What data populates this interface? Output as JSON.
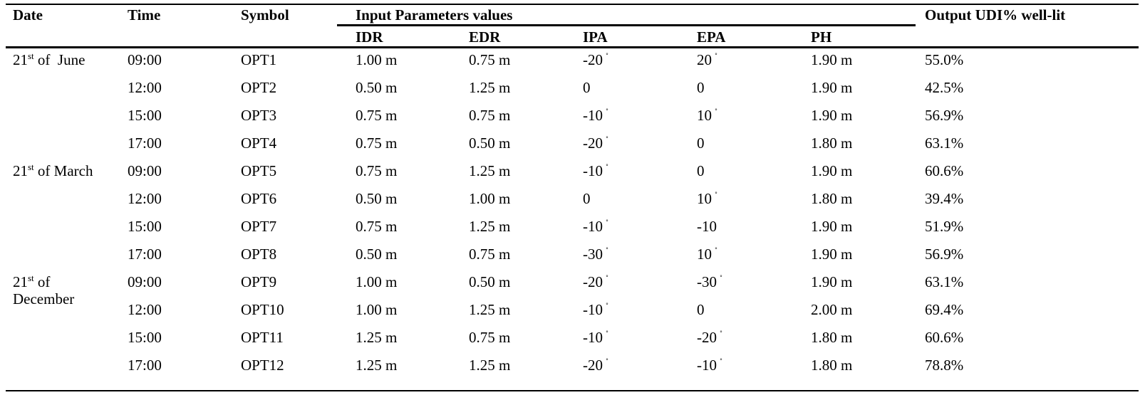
{
  "headers": {
    "date": "Date",
    "time": "Time",
    "symbol": "Symbol",
    "input_group": "Input Parameters values",
    "output": "Output UDI% well-lit",
    "idr": "IDR",
    "edr": "EDR",
    "ipa": "IPA",
    "epa": "EPA",
    "ph": "PH"
  },
  "date_groups": [
    {
      "prefix": "21",
      "sup": "st",
      "suffix": " of  June"
    },
    {
      "prefix": "21",
      "sup": "st",
      "suffix": " of March"
    },
    {
      "prefix": "21",
      "sup": "st",
      "suffix": " of December"
    }
  ],
  "rows": [
    {
      "time": "09:00",
      "symbol": "OPT1",
      "idr": "1.00 m",
      "edr": "0.75 m",
      "ipa": "-20",
      "ipa_deg": "˚",
      "epa": "20",
      "epa_deg": "˚",
      "ph": "1.90 m",
      "udi": "55.0%"
    },
    {
      "time": "12:00",
      "symbol": "OPT2",
      "idr": "0.50 m",
      "edr": "1.25 m",
      "ipa": "0",
      "ipa_deg": "",
      "epa": "0",
      "epa_deg": "",
      "ph": "1.90 m",
      "udi": "42.5%"
    },
    {
      "time": "15:00",
      "symbol": "OPT3",
      "idr": "0.75 m",
      "edr": "0.75 m",
      "ipa": "-10",
      "ipa_deg": "˚",
      "epa": "10",
      "epa_deg": "˚",
      "ph": "1.90 m",
      "udi": "56.9%"
    },
    {
      "time": "17:00",
      "symbol": "OPT4",
      "idr": "0.75 m",
      "edr": "0.50 m",
      "ipa": "-20",
      "ipa_deg": "˚",
      "epa": "0",
      "epa_deg": "",
      "ph": "1.80 m",
      "udi": "63.1%"
    },
    {
      "time": "09:00",
      "symbol": "OPT5",
      "idr": "0.75 m",
      "edr": "1.25 m",
      "ipa": "-10",
      "ipa_deg": "˚",
      "epa": "0",
      "epa_deg": "",
      "ph": "1.90 m",
      "udi": "60.6%"
    },
    {
      "time": "12:00",
      "symbol": "OPT6",
      "idr": "0.50 m",
      "edr": "1.00 m",
      "ipa": "0",
      "ipa_deg": "",
      "epa": "10",
      "epa_deg": "˚",
      "ph": "1.80 m",
      "udi": "39.4%"
    },
    {
      "time": "15:00",
      "symbol": "OPT7",
      "idr": "0.75 m",
      "edr": "1.25 m",
      "ipa": "-10",
      "ipa_deg": "˚",
      "epa": "-10",
      "epa_deg": "",
      "ph": "1.90 m",
      "udi": "51.9%"
    },
    {
      "time": "17:00",
      "symbol": "OPT8",
      "idr": "0.50 m",
      "edr": "0.75 m",
      "ipa": "-30",
      "ipa_deg": "˚",
      "epa": "10",
      "epa_deg": "˚",
      "ph": "1.90 m",
      "udi": "56.9%"
    },
    {
      "time": "09:00",
      "symbol": "OPT9",
      "idr": "1.00 m",
      "edr": "0.50 m",
      "ipa": "-20",
      "ipa_deg": "˚",
      "epa": "-30",
      "epa_deg": "˚",
      "ph": "1.90 m",
      "udi": "63.1%"
    },
    {
      "time": "12:00",
      "symbol": "OPT10",
      "idr": "1.00 m",
      "edr": "1.25 m",
      "ipa": "-10",
      "ipa_deg": "˚",
      "epa": "0",
      "epa_deg": "",
      "ph": "2.00 m",
      "udi": "69.4%"
    },
    {
      "time": "15:00",
      "symbol": "OPT11",
      "idr": "1.25 m",
      "edr": "0.75 m",
      "ipa": "-10",
      "ipa_deg": "˚",
      "epa": "-20",
      "epa_deg": "˚",
      "ph": "1.80 m",
      "udi": "60.6%"
    },
    {
      "time": "17:00",
      "symbol": "OPT12",
      "idr": "1.25 m",
      "edr": "1.25 m",
      "ipa": "-20",
      "ipa_deg": "˚",
      "epa": "-10",
      "epa_deg": "˚",
      "ph": "1.80 m",
      "udi": "78.8%"
    }
  ]
}
